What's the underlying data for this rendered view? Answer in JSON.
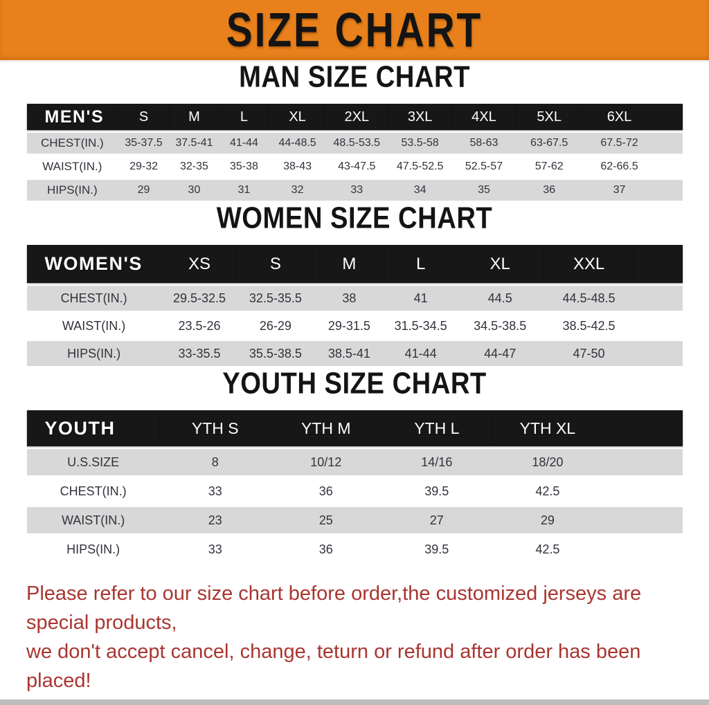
{
  "banner": {
    "title": "SIZE CHART",
    "bg_color": "#E8811C",
    "text_color": "#141414"
  },
  "colors": {
    "header_bar": "#171717",
    "row_gray": "#d8d8d8",
    "value_text": "#31333b",
    "footer_red": "#A93530"
  },
  "chart_data": [
    {
      "type": "table",
      "title": "MAN SIZE CHART",
      "header_label": "MEN'S",
      "columns": [
        "S",
        "M",
        "L",
        "XL",
        "2XL",
        "3XL",
        "4XL",
        "5XL",
        "6XL"
      ],
      "rows": [
        {
          "label": "CHEST(IN.)",
          "values": [
            "35-37.5",
            "37.5-41",
            "41-44",
            "44-48.5",
            "48.5-53.5",
            "53.5-58",
            "58-63",
            "63-67.5",
            "67.5-72"
          ]
        },
        {
          "label": "WAIST(IN.)",
          "values": [
            "29-32",
            "32-35",
            "35-38",
            "38-43",
            "43-47.5",
            "47.5-52.5",
            "52.5-57",
            "57-62",
            "62-66.5"
          ]
        },
        {
          "label": "HIPS(IN.)",
          "values": [
            "29",
            "30",
            "31",
            "32",
            "33",
            "34",
            "35",
            "36",
            "37"
          ]
        }
      ]
    },
    {
      "type": "table",
      "title": "WOMEN SIZE CHART",
      "header_label": "WOMEN'S",
      "columns": [
        "XS",
        "S",
        "M",
        "L",
        "XL",
        "XXL"
      ],
      "rows": [
        {
          "label": "CHEST(IN.)",
          "values": [
            "29.5-32.5",
            "32.5-35.5",
            "38",
            "41",
            "44.5",
            "44.5-48.5"
          ]
        },
        {
          "label": "WAIST(IN.)",
          "values": [
            "23.5-26",
            "26-29",
            "29-31.5",
            "31.5-34.5",
            "34.5-38.5",
            "38.5-42.5"
          ]
        },
        {
          "label": "HIPS(IN.)",
          "values": [
            "33-35.5",
            "35.5-38.5",
            "38.5-41",
            "41-44",
            "44-47",
            "47-50"
          ]
        }
      ]
    },
    {
      "type": "table",
      "title": "YOUTH SIZE CHART",
      "header_label": "YOUTH",
      "columns": [
        "YTH S",
        "YTH M",
        "YTH L",
        "YTH XL"
      ],
      "rows": [
        {
          "label": "U.S.SIZE",
          "values": [
            "8",
            "10/12",
            "14/16",
            "18/20"
          ]
        },
        {
          "label": "CHEST(IN.)",
          "values": [
            "33",
            "36",
            "39.5",
            "42.5"
          ]
        },
        {
          "label": "WAIST(IN.)",
          "values": [
            "23",
            "25",
            "27",
            "29"
          ]
        },
        {
          "label": "HIPS(IN.)",
          "values": [
            "33",
            "36",
            "39.5",
            "42.5"
          ]
        }
      ]
    }
  ],
  "footer": {
    "line1": "Please refer to our size chart before order,the customized jerseys are special products,",
    "line2": "we don't accept cancel, change, teturn or refund after order has been placed!"
  }
}
